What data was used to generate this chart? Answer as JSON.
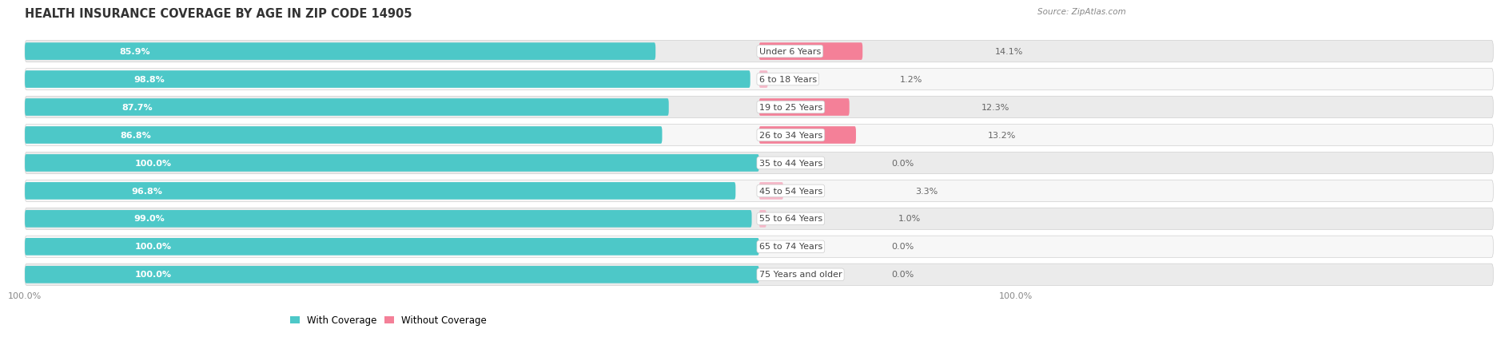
{
  "title": "HEALTH INSURANCE COVERAGE BY AGE IN ZIP CODE 14905",
  "source": "Source: ZipAtlas.com",
  "categories": [
    "Under 6 Years",
    "6 to 18 Years",
    "19 to 25 Years",
    "26 to 34 Years",
    "35 to 44 Years",
    "45 to 54 Years",
    "55 to 64 Years",
    "65 to 74 Years",
    "75 Years and older"
  ],
  "with_coverage": [
    85.9,
    98.8,
    87.7,
    86.8,
    100.0,
    96.8,
    99.0,
    100.0,
    100.0
  ],
  "without_coverage": [
    14.1,
    1.2,
    12.3,
    13.2,
    0.0,
    3.3,
    1.0,
    0.0,
    0.0
  ],
  "color_with": "#4DC8C8",
  "color_without": "#F48098",
  "color_without_light": "#F5B8C8",
  "bg_row_odd": "#f0f0f0",
  "bg_row_even": "#fafafa",
  "title_fontsize": 10.5,
  "label_fontsize": 8.0,
  "cat_fontsize": 8.0,
  "bar_height": 0.62,
  "legend_labels": [
    "With Coverage",
    "Without Coverage"
  ],
  "x_left_label": "100.0%",
  "x_right_label": "100.0%",
  "total_width": 100
}
